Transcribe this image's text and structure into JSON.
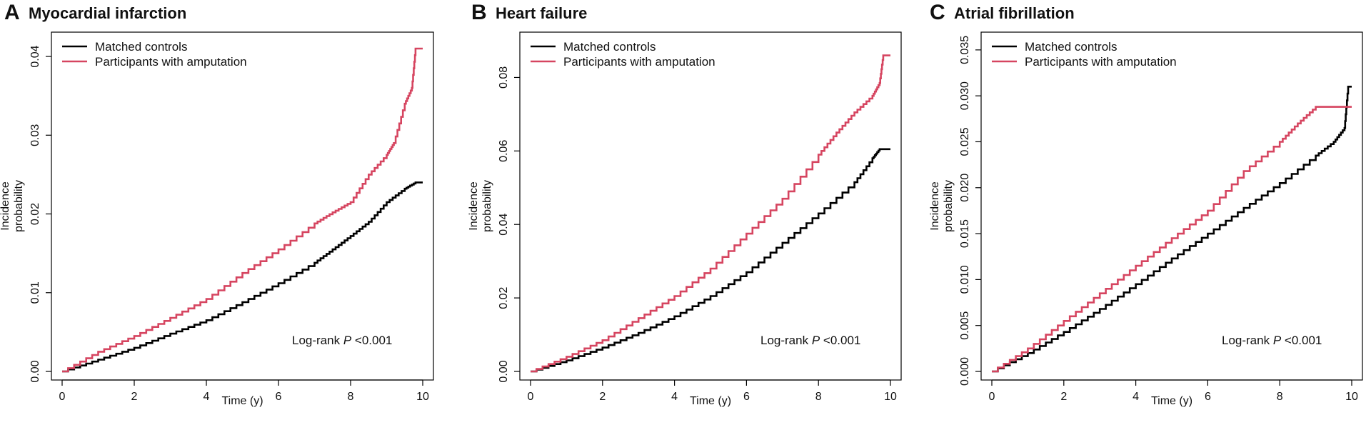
{
  "chart_data": [
    {
      "type": "line",
      "panel_letter": "A",
      "title": "Myocardial infarction",
      "xlabel": "Time (y)",
      "ylabel": "Incidence probability",
      "xlim": [
        0,
        10
      ],
      "ylim": [
        0,
        0.042
      ],
      "x_ticks": [
        0,
        2,
        4,
        6,
        8,
        10
      ],
      "y_ticks": [
        0.0,
        0.01,
        0.02,
        0.03,
        0.04
      ],
      "y_tick_labels": [
        "0.00",
        "0.01",
        "0.02",
        "0.03",
        "0.04"
      ],
      "legend": "top-left",
      "annotation": {
        "prefix": "Log-rank ",
        "italic": "P",
        "suffix": " <0.001"
      },
      "series": [
        {
          "name": "Matched controls",
          "color": "#000000",
          "points": [
            [
              0,
              0
            ],
            [
              1,
              0.0015
            ],
            [
              2,
              0.003
            ],
            [
              3,
              0.0048
            ],
            [
              4,
              0.0065
            ],
            [
              5,
              0.0088
            ],
            [
              6,
              0.0112
            ],
            [
              7,
              0.0138
            ],
            [
              7.5,
              0.0155
            ],
            [
              8,
              0.0172
            ],
            [
              8.5,
              0.019
            ],
            [
              9,
              0.0215
            ],
            [
              9.5,
              0.0232
            ],
            [
              9.8,
              0.024
            ],
            [
              10,
              0.024
            ]
          ]
        },
        {
          "name": "Participants with amputation",
          "color": "#d64560",
          "points": [
            [
              0,
              0
            ],
            [
              1,
              0.0025
            ],
            [
              2,
              0.0045
            ],
            [
              3,
              0.0068
            ],
            [
              4,
              0.0092
            ],
            [
              5,
              0.0125
            ],
            [
              6,
              0.0155
            ],
            [
              7,
              0.0188
            ],
            [
              7.5,
              0.0202
            ],
            [
              8,
              0.0215
            ],
            [
              8.5,
              0.025
            ],
            [
              9,
              0.0275
            ],
            [
              9.2,
              0.029
            ],
            [
              9.5,
              0.034
            ],
            [
              9.7,
              0.036
            ],
            [
              9.8,
              0.041
            ],
            [
              10,
              0.041
            ]
          ]
        }
      ]
    },
    {
      "type": "line",
      "panel_letter": "B",
      "title": "Heart failure",
      "xlabel": "Time (y)",
      "ylabel": "Incidence probability",
      "xlim": [
        0,
        10
      ],
      "ylim": [
        0,
        0.09
      ],
      "x_ticks": [
        0,
        2,
        4,
        6,
        8,
        10
      ],
      "y_ticks": [
        0.0,
        0.02,
        0.04,
        0.06,
        0.08
      ],
      "y_tick_labels": [
        "0.00",
        "0.02",
        "0.04",
        "0.06",
        "0.08"
      ],
      "legend": "top-left",
      "annotation": {
        "prefix": "Log-rank ",
        "italic": "P",
        "suffix": " <0.001"
      },
      "series": [
        {
          "name": "Matched controls",
          "color": "#000000",
          "points": [
            [
              0,
              0
            ],
            [
              1,
              0.003
            ],
            [
              2,
              0.0065
            ],
            [
              3,
              0.0105
            ],
            [
              4,
              0.015
            ],
            [
              5,
              0.0205
            ],
            [
              6,
              0.027
            ],
            [
              7,
              0.035
            ],
            [
              8,
              0.043
            ],
            [
              9,
              0.0515
            ],
            [
              9.5,
              0.058
            ],
            [
              9.7,
              0.0605
            ],
            [
              10,
              0.0605
            ]
          ]
        },
        {
          "name": "Participants with amputation",
          "color": "#d64560",
          "points": [
            [
              0,
              0
            ],
            [
              1,
              0.004
            ],
            [
              2,
              0.0085
            ],
            [
              3,
              0.0145
            ],
            [
              4,
              0.0205
            ],
            [
              5,
              0.028
            ],
            [
              6,
              0.0375
            ],
            [
              7,
              0.047
            ],
            [
              8,
              0.059
            ],
            [
              8.5,
              0.065
            ],
            [
              9,
              0.0705
            ],
            [
              9.5,
              0.075
            ],
            [
              9.7,
              0.0785
            ],
            [
              9.8,
              0.086
            ],
            [
              10,
              0.086
            ]
          ]
        }
      ]
    },
    {
      "type": "line",
      "panel_letter": "C",
      "title": "Atrial fibrillation",
      "xlabel": "Time (y)",
      "ylabel": "Incidence probability",
      "xlim": [
        0,
        10
      ],
      "ylim": [
        0,
        0.036
      ],
      "x_ticks": [
        0,
        2,
        4,
        6,
        8,
        10
      ],
      "y_ticks": [
        0.0,
        0.005,
        0.01,
        0.015,
        0.02,
        0.025,
        0.03,
        0.035
      ],
      "y_tick_labels": [
        "0.000",
        "0.005",
        "0.010",
        "0.015",
        "0.020",
        "0.025",
        "0.030",
        "0.035"
      ],
      "legend": "top-left",
      "annotation": {
        "prefix": "Log-rank ",
        "italic": "P",
        "suffix": " <0.001"
      },
      "series": [
        {
          "name": "Matched controls",
          "color": "#000000",
          "points": [
            [
              0,
              0
            ],
            [
              1,
              0.002
            ],
            [
              2,
              0.0043
            ],
            [
              3,
              0.0068
            ],
            [
              4,
              0.0095
            ],
            [
              5,
              0.0123
            ],
            [
              6,
              0.015
            ],
            [
              7,
              0.0178
            ],
            [
              8,
              0.0205
            ],
            [
              9,
              0.0235
            ],
            [
              9.5,
              0.025
            ],
            [
              9.8,
              0.0265
            ],
            [
              9.9,
              0.031
            ],
            [
              10,
              0.031
            ]
          ]
        },
        {
          "name": "Participants with amputation",
          "color": "#d64560",
          "points": [
            [
              0,
              0
            ],
            [
              1,
              0.0025
            ],
            [
              2,
              0.0055
            ],
            [
              3,
              0.0085
            ],
            [
              4,
              0.0115
            ],
            [
              5,
              0.0145
            ],
            [
              6,
              0.0175
            ],
            [
              7,
              0.0218
            ],
            [
              8,
              0.025
            ],
            [
              8.5,
              0.027
            ],
            [
              9,
              0.0288
            ],
            [
              10,
              0.0288
            ]
          ]
        }
      ]
    }
  ]
}
